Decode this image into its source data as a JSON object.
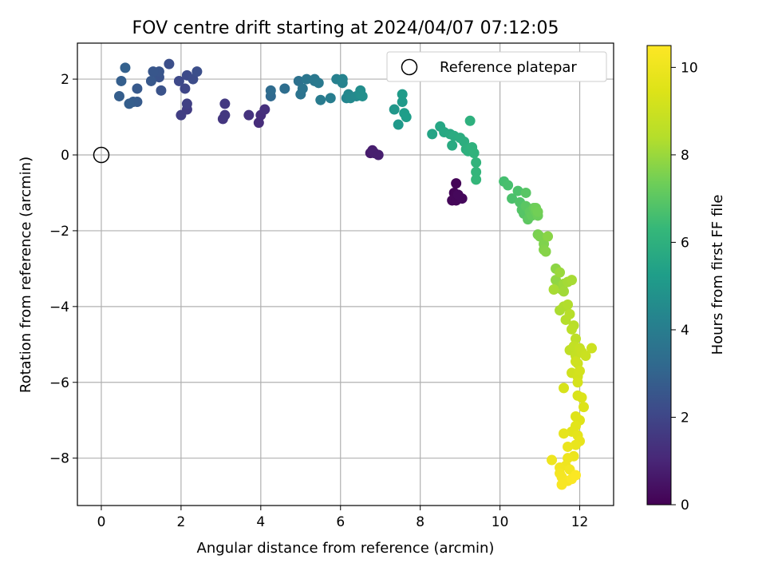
{
  "chart_data": {
    "type": "scatter",
    "title": "FOV centre drift starting at 2024/04/07 07:12:05",
    "xlabel": "Angular distance from reference (arcmin)",
    "ylabel": "Rotation from reference (arcmin)",
    "xlim": [
      -0.6,
      12.85
    ],
    "ylim": [
      -9.25,
      2.95
    ],
    "xticks": [
      0,
      2,
      4,
      6,
      8,
      10,
      12
    ],
    "yticks": [
      -8,
      -6,
      -4,
      -2,
      0,
      2
    ],
    "xtick_labels": [
      "0",
      "2",
      "4",
      "6",
      "8",
      "10",
      "12"
    ],
    "ytick_labels": [
      "−8",
      "−6",
      "−4",
      "−2",
      "0",
      "2"
    ],
    "grid": true,
    "legend": {
      "placement": "top-right",
      "entries": [
        "Reference platepar"
      ]
    },
    "reference_point": {
      "x": 0,
      "y": 0
    },
    "colorbar": {
      "label": "Hours from first FF file",
      "range": [
        0,
        10.5
      ],
      "ticks": [
        0,
        2,
        4,
        6,
        8,
        10
      ],
      "tick_labels": [
        "0",
        "2",
        "4",
        "6",
        "8",
        "10"
      ],
      "colormap": "viridis"
    },
    "points": [
      {
        "x": 8.9,
        "y": -0.75,
        "c": 0.1
      },
      {
        "x": 8.85,
        "y": -1.0,
        "c": 0.1
      },
      {
        "x": 8.8,
        "y": -1.2,
        "c": 0.15
      },
      {
        "x": 8.9,
        "y": -1.2,
        "c": 0.15
      },
      {
        "x": 9.05,
        "y": -1.15,
        "c": 0.2
      },
      {
        "x": 8.95,
        "y": -1.05,
        "c": 0.2
      },
      {
        "x": 6.75,
        "y": 0.05,
        "c": 0.7
      },
      {
        "x": 6.8,
        "y": 0.12,
        "c": 0.75
      },
      {
        "x": 6.85,
        "y": 0.05,
        "c": 0.8
      },
      {
        "x": 6.95,
        "y": 0.0,
        "c": 0.8
      },
      {
        "x": 3.95,
        "y": 0.85,
        "c": 1.2
      },
      {
        "x": 4.0,
        "y": 1.05,
        "c": 1.25
      },
      {
        "x": 4.1,
        "y": 1.2,
        "c": 1.3
      },
      {
        "x": 3.7,
        "y": 1.05,
        "c": 1.4
      },
      {
        "x": 3.05,
        "y": 0.95,
        "c": 1.5
      },
      {
        "x": 3.1,
        "y": 1.05,
        "c": 1.55
      },
      {
        "x": 3.1,
        "y": 1.35,
        "c": 1.6
      },
      {
        "x": 2.15,
        "y": 1.2,
        "c": 1.7
      },
      {
        "x": 2.0,
        "y": 1.05,
        "c": 1.75
      },
      {
        "x": 2.15,
        "y": 1.35,
        "c": 1.8
      },
      {
        "x": 2.1,
        "y": 1.75,
        "c": 2.0
      },
      {
        "x": 1.95,
        "y": 1.95,
        "c": 2.1
      },
      {
        "x": 2.15,
        "y": 2.1,
        "c": 2.15
      },
      {
        "x": 2.3,
        "y": 2.0,
        "c": 2.2
      },
      {
        "x": 2.4,
        "y": 2.2,
        "c": 2.3
      },
      {
        "x": 1.7,
        "y": 2.4,
        "c": 2.3
      },
      {
        "x": 1.5,
        "y": 1.7,
        "c": 2.4
      },
      {
        "x": 1.45,
        "y": 2.05,
        "c": 2.45
      },
      {
        "x": 1.45,
        "y": 2.2,
        "c": 2.5
      },
      {
        "x": 1.3,
        "y": 2.2,
        "c": 2.55
      },
      {
        "x": 1.25,
        "y": 1.95,
        "c": 2.6
      },
      {
        "x": 0.9,
        "y": 1.75,
        "c": 2.65
      },
      {
        "x": 0.9,
        "y": 1.4,
        "c": 2.7
      },
      {
        "x": 0.8,
        "y": 1.4,
        "c": 2.75
      },
      {
        "x": 0.7,
        "y": 1.35,
        "c": 2.8
      },
      {
        "x": 0.45,
        "y": 1.55,
        "c": 2.8
      },
      {
        "x": 0.5,
        "y": 1.95,
        "c": 2.85
      },
      {
        "x": 0.6,
        "y": 2.3,
        "c": 2.9
      },
      {
        "x": 4.25,
        "y": 1.55,
        "c": 3.2
      },
      {
        "x": 4.25,
        "y": 1.7,
        "c": 3.3
      },
      {
        "x": 4.6,
        "y": 1.75,
        "c": 3.4
      },
      {
        "x": 4.95,
        "y": 1.95,
        "c": 3.5
      },
      {
        "x": 5.0,
        "y": 1.6,
        "c": 3.6
      },
      {
        "x": 5.05,
        "y": 1.75,
        "c": 3.65
      },
      {
        "x": 5.15,
        "y": 2.0,
        "c": 3.7
      },
      {
        "x": 5.35,
        "y": 1.95,
        "c": 3.75
      },
      {
        "x": 5.35,
        "y": 2.0,
        "c": 3.8
      },
      {
        "x": 5.45,
        "y": 1.9,
        "c": 3.85
      },
      {
        "x": 5.5,
        "y": 1.45,
        "c": 3.9
      },
      {
        "x": 5.75,
        "y": 1.5,
        "c": 4.0
      },
      {
        "x": 5.9,
        "y": 2.0,
        "c": 4.1
      },
      {
        "x": 6.05,
        "y": 1.9,
        "c": 4.2
      },
      {
        "x": 6.05,
        "y": 2.0,
        "c": 4.25
      },
      {
        "x": 6.15,
        "y": 1.5,
        "c": 4.3
      },
      {
        "x": 6.2,
        "y": 1.6,
        "c": 4.4
      },
      {
        "x": 6.25,
        "y": 1.5,
        "c": 4.45
      },
      {
        "x": 6.4,
        "y": 1.55,
        "c": 4.5
      },
      {
        "x": 6.5,
        "y": 1.7,
        "c": 4.6
      },
      {
        "x": 6.5,
        "y": 1.6,
        "c": 4.65
      },
      {
        "x": 6.55,
        "y": 1.55,
        "c": 4.7
      },
      {
        "x": 7.35,
        "y": 1.2,
        "c": 5.0
      },
      {
        "x": 7.45,
        "y": 0.8,
        "c": 5.05
      },
      {
        "x": 7.55,
        "y": 1.4,
        "c": 5.1
      },
      {
        "x": 7.55,
        "y": 1.6,
        "c": 5.15
      },
      {
        "x": 7.6,
        "y": 1.1,
        "c": 5.2
      },
      {
        "x": 7.65,
        "y": 1.0,
        "c": 5.25
      },
      {
        "x": 8.3,
        "y": 0.55,
        "c": 5.5
      },
      {
        "x": 8.5,
        "y": 0.75,
        "c": 5.6
      },
      {
        "x": 8.6,
        "y": 0.6,
        "c": 5.65
      },
      {
        "x": 8.75,
        "y": 0.55,
        "c": 5.7
      },
      {
        "x": 8.8,
        "y": 0.25,
        "c": 5.75
      },
      {
        "x": 8.85,
        "y": 0.5,
        "c": 5.8
      },
      {
        "x": 9.0,
        "y": 0.45,
        "c": 5.85
      },
      {
        "x": 9.1,
        "y": 0.35,
        "c": 5.9
      },
      {
        "x": 9.15,
        "y": 0.15,
        "c": 5.95
      },
      {
        "x": 9.2,
        "y": 0.1,
        "c": 6.0
      },
      {
        "x": 9.25,
        "y": 0.9,
        "c": 6.0
      },
      {
        "x": 9.3,
        "y": 0.2,
        "c": 6.05
      },
      {
        "x": 9.35,
        "y": 0.05,
        "c": 6.1
      },
      {
        "x": 9.4,
        "y": -0.2,
        "c": 6.15
      },
      {
        "x": 9.4,
        "y": -0.45,
        "c": 6.2
      },
      {
        "x": 9.4,
        "y": -0.65,
        "c": 6.25
      },
      {
        "x": 10.1,
        "y": -0.7,
        "c": 6.6
      },
      {
        "x": 10.2,
        "y": -0.8,
        "c": 6.65
      },
      {
        "x": 10.3,
        "y": -1.15,
        "c": 6.7
      },
      {
        "x": 10.45,
        "y": -0.95,
        "c": 6.75
      },
      {
        "x": 10.5,
        "y": -1.25,
        "c": 6.8
      },
      {
        "x": 10.55,
        "y": -1.45,
        "c": 6.85
      },
      {
        "x": 10.6,
        "y": -1.55,
        "c": 6.9
      },
      {
        "x": 10.65,
        "y": -1.0,
        "c": 6.95
      },
      {
        "x": 10.65,
        "y": -1.35,
        "c": 7.0
      },
      {
        "x": 10.7,
        "y": -1.7,
        "c": 7.05
      },
      {
        "x": 10.75,
        "y": -1.5,
        "c": 7.1
      },
      {
        "x": 10.8,
        "y": -1.6,
        "c": 7.15
      },
      {
        "x": 10.85,
        "y": -1.4,
        "c": 7.2
      },
      {
        "x": 10.9,
        "y": -1.5,
        "c": 7.25
      },
      {
        "x": 10.95,
        "y": -1.6,
        "c": 7.3
      },
      {
        "x": 10.9,
        "y": -1.4,
        "c": 7.35
      },
      {
        "x": 10.95,
        "y": -1.5,
        "c": 7.4
      },
      {
        "x": 10.95,
        "y": -2.1,
        "c": 7.5
      },
      {
        "x": 11.0,
        "y": -2.15,
        "c": 7.55
      },
      {
        "x": 11.1,
        "y": -2.35,
        "c": 7.6
      },
      {
        "x": 11.1,
        "y": -2.5,
        "c": 7.65
      },
      {
        "x": 11.15,
        "y": -2.55,
        "c": 7.7
      },
      {
        "x": 11.2,
        "y": -2.15,
        "c": 7.75
      },
      {
        "x": 11.4,
        "y": -3.0,
        "c": 7.8
      },
      {
        "x": 11.4,
        "y": -3.3,
        "c": 7.85
      },
      {
        "x": 11.45,
        "y": -3.5,
        "c": 7.9
      },
      {
        "x": 11.55,
        "y": -3.55,
        "c": 7.95
      },
      {
        "x": 11.5,
        "y": -3.1,
        "c": 8.0
      },
      {
        "x": 11.6,
        "y": -3.4,
        "c": 8.05
      },
      {
        "x": 11.6,
        "y": -3.6,
        "c": 8.1
      },
      {
        "x": 11.7,
        "y": -3.35,
        "c": 8.15
      },
      {
        "x": 11.8,
        "y": -3.3,
        "c": 8.2
      },
      {
        "x": 11.35,
        "y": -3.55,
        "c": 8.2
      },
      {
        "x": 11.5,
        "y": -4.1,
        "c": 8.25
      },
      {
        "x": 11.6,
        "y": -4.0,
        "c": 8.3
      },
      {
        "x": 11.7,
        "y": -3.95,
        "c": 8.35
      },
      {
        "x": 11.65,
        "y": -4.35,
        "c": 8.4
      },
      {
        "x": 11.75,
        "y": -4.2,
        "c": 8.45
      },
      {
        "x": 11.85,
        "y": -4.5,
        "c": 8.5
      },
      {
        "x": 11.8,
        "y": -4.6,
        "c": 8.55
      },
      {
        "x": 11.9,
        "y": -4.85,
        "c": 8.6
      },
      {
        "x": 11.75,
        "y": -5.15,
        "c": 8.7
      },
      {
        "x": 11.85,
        "y": -5.05,
        "c": 8.75
      },
      {
        "x": 11.9,
        "y": -5.3,
        "c": 8.8
      },
      {
        "x": 12.0,
        "y": -5.1,
        "c": 8.85
      },
      {
        "x": 12.05,
        "y": -5.2,
        "c": 8.9
      },
      {
        "x": 12.15,
        "y": -5.3,
        "c": 8.95
      },
      {
        "x": 12.3,
        "y": -5.1,
        "c": 9.0
      },
      {
        "x": 11.95,
        "y": -5.5,
        "c": 9.0
      },
      {
        "x": 11.9,
        "y": -5.45,
        "c": 9.05
      },
      {
        "x": 11.8,
        "y": -5.75,
        "c": 9.1
      },
      {
        "x": 11.95,
        "y": -5.85,
        "c": 9.15
      },
      {
        "x": 12.0,
        "y": -5.7,
        "c": 9.2
      },
      {
        "x": 11.95,
        "y": -6.0,
        "c": 9.25
      },
      {
        "x": 11.6,
        "y": -6.15,
        "c": 9.3
      },
      {
        "x": 11.95,
        "y": -6.35,
        "c": 9.35
      },
      {
        "x": 12.05,
        "y": -6.4,
        "c": 9.4
      },
      {
        "x": 12.1,
        "y": -6.65,
        "c": 9.45
      },
      {
        "x": 11.9,
        "y": -6.9,
        "c": 9.5
      },
      {
        "x": 12.0,
        "y": -7.0,
        "c": 9.55
      },
      {
        "x": 11.9,
        "y": -7.15,
        "c": 9.6
      },
      {
        "x": 11.8,
        "y": -7.3,
        "c": 9.65
      },
      {
        "x": 11.95,
        "y": -7.4,
        "c": 9.7
      },
      {
        "x": 11.6,
        "y": -7.35,
        "c": 9.75
      },
      {
        "x": 12.0,
        "y": -7.55,
        "c": 9.8
      },
      {
        "x": 11.9,
        "y": -7.65,
        "c": 9.85
      },
      {
        "x": 11.7,
        "y": -7.7,
        "c": 9.9
      },
      {
        "x": 11.85,
        "y": -7.95,
        "c": 9.95
      },
      {
        "x": 11.7,
        "y": -8.0,
        "c": 10.0
      },
      {
        "x": 11.3,
        "y": -8.05,
        "c": 10.0
      },
      {
        "x": 11.65,
        "y": -8.2,
        "c": 10.05
      },
      {
        "x": 11.5,
        "y": -8.25,
        "c": 10.1
      },
      {
        "x": 11.75,
        "y": -8.3,
        "c": 10.15
      },
      {
        "x": 11.5,
        "y": -8.4,
        "c": 10.2
      },
      {
        "x": 11.55,
        "y": -8.5,
        "c": 10.25
      },
      {
        "x": 11.7,
        "y": -8.6,
        "c": 10.3
      },
      {
        "x": 11.55,
        "y": -8.7,
        "c": 10.35
      },
      {
        "x": 11.8,
        "y": -8.55,
        "c": 10.4
      },
      {
        "x": 11.9,
        "y": -8.45,
        "c": 10.45
      }
    ]
  }
}
